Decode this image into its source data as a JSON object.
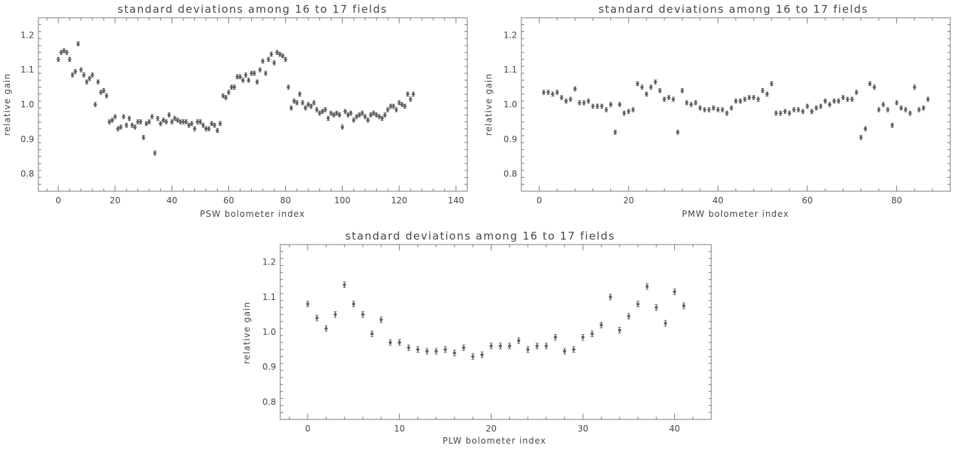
{
  "chart_data": [
    {
      "type": "scatter",
      "title": "standard deviations among 16 to 17 fields",
      "xlabel": "PSW bolometer index",
      "ylabel": "relative gain",
      "xlim": [
        -7,
        144
      ],
      "ylim": [
        0.75,
        1.25
      ],
      "xticks": [
        "0",
        "20",
        "40",
        "60",
        "80",
        "100",
        "120",
        "140"
      ],
      "yticks": [
        "0.8",
        "0.9",
        "1.0",
        "1.1",
        "1.2"
      ],
      "x_start": 0,
      "y": [
        1.13,
        1.15,
        1.155,
        1.15,
        1.13,
        1.085,
        1.095,
        1.175,
        1.1,
        1.085,
        1.065,
        1.075,
        1.085,
        1.0,
        1.065,
        1.035,
        1.04,
        1.025,
        0.95,
        0.955,
        0.965,
        0.93,
        0.935,
        0.965,
        0.94,
        0.96,
        0.94,
        0.935,
        0.95,
        0.95,
        0.905,
        0.945,
        0.95,
        0.965,
        0.86,
        0.96,
        0.945,
        0.955,
        0.95,
        0.97,
        0.95,
        0.96,
        0.955,
        0.95,
        0.95,
        0.95,
        0.94,
        0.945,
        0.93,
        0.95,
        0.95,
        0.94,
        0.93,
        0.93,
        0.945,
        0.94,
        0.925,
        0.945,
        1.025,
        1.02,
        1.035,
        1.05,
        1.05,
        1.08,
        1.08,
        1.07,
        1.085,
        1.07,
        1.09,
        1.09,
        1.065,
        1.1,
        1.125,
        1.09,
        1.13,
        1.145,
        1.12,
        1.15,
        1.145,
        1.14,
        1.13,
        1.05,
        0.99,
        1.01,
        1.005,
        1.03,
        1.005,
        0.99,
        1.0,
        0.995,
        1.005,
        0.985,
        0.975,
        0.98,
        0.985,
        0.96,
        0.975,
        0.97,
        0.975,
        0.97,
        0.935,
        0.98,
        0.97,
        0.975,
        0.955,
        0.965,
        0.97,
        0.975,
        0.965,
        0.955,
        0.97,
        0.975,
        0.97,
        0.965,
        0.96,
        0.97,
        0.985,
        0.995,
        0.995,
        0.985,
        1.005,
        1.0,
        0.995,
        1.03,
        1.015,
        1.03
      ],
      "err": 0.006
    },
    {
      "type": "scatter",
      "title": "standard deviations among 16 to 17 fields",
      "xlabel": "PMW bolometer index",
      "ylabel": "relative gain",
      "xlim": [
        -4,
        92
      ],
      "ylim": [
        0.75,
        1.25
      ],
      "xticks": [
        "0",
        "20",
        "40",
        "60",
        "80"
      ],
      "yticks": [
        "0.8",
        "0.9",
        "1.0",
        "1.1",
        "1.2"
      ],
      "x_start": 1,
      "y": [
        1.035,
        1.035,
        1.03,
        1.035,
        1.02,
        1.01,
        1.015,
        1.045,
        1.005,
        1.005,
        1.01,
        0.995,
        0.995,
        0.995,
        0.985,
        1.0,
        0.92,
        1.0,
        0.975,
        0.98,
        0.985,
        1.06,
        1.05,
        1.03,
        1.05,
        1.065,
        1.04,
        1.015,
        1.02,
        1.015,
        0.92,
        1.04,
        1.005,
        1.0,
        1.005,
        0.99,
        0.985,
        0.985,
        0.99,
        0.985,
        0.985,
        0.975,
        0.99,
        1.01,
        1.01,
        1.015,
        1.02,
        1.02,
        1.015,
        1.04,
        1.03,
        1.06,
        0.975,
        0.975,
        0.98,
        0.975,
        0.985,
        0.985,
        0.98,
        0.995,
        0.98,
        0.99,
        0.995,
        1.01,
        1.0,
        1.01,
        1.01,
        1.02,
        1.015,
        1.015,
        1.035,
        0.905,
        0.93,
        1.06,
        1.05,
        0.985,
        1.0,
        0.985,
        0.94,
        1.005,
        0.99,
        0.985,
        0.975,
        1.05,
        0.985,
        0.99,
        1.015
      ],
      "err": 0.006
    },
    {
      "type": "scatter",
      "title": "standard deviations among 16 to 17 fields",
      "xlabel": "PLW bolometer index",
      "ylabel": "relative gain",
      "xlim": [
        -3,
        44
      ],
      "ylim": [
        0.75,
        1.25
      ],
      "xticks": [
        "0",
        "10",
        "20",
        "30",
        "40"
      ],
      "yticks": [
        "0.8",
        "0.9",
        "1.0",
        "1.1",
        "1.2"
      ],
      "x_start": 0,
      "y": [
        1.08,
        1.04,
        1.01,
        1.05,
        1.135,
        1.08,
        1.05,
        0.995,
        1.035,
        0.97,
        0.97,
        0.955,
        0.95,
        0.945,
        0.945,
        0.95,
        0.94,
        0.955,
        0.93,
        0.935,
        0.96,
        0.96,
        0.96,
        0.975,
        0.95,
        0.96,
        0.96,
        0.985,
        0.945,
        0.95,
        0.985,
        0.995,
        1.02,
        1.1,
        1.005,
        1.045,
        1.08,
        1.13,
        1.07,
        1.025,
        1.115,
        1.075
      ],
      "err": 0.008
    }
  ]
}
